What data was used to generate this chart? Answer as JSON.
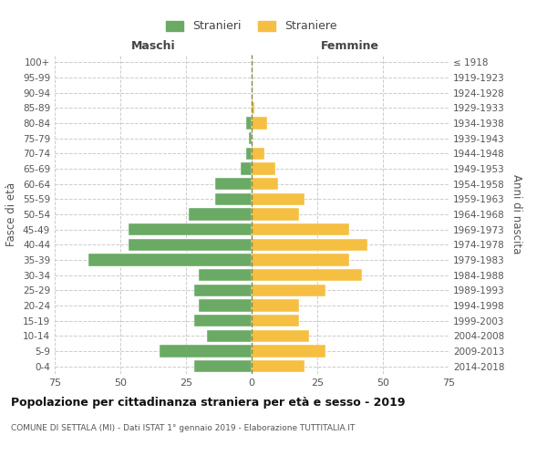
{
  "age_groups": [
    "0-4",
    "5-9",
    "10-14",
    "15-19",
    "20-24",
    "25-29",
    "30-34",
    "35-39",
    "40-44",
    "45-49",
    "50-54",
    "55-59",
    "60-64",
    "65-69",
    "70-74",
    "75-79",
    "80-84",
    "85-89",
    "90-94",
    "95-99",
    "100+"
  ],
  "birth_years": [
    "2014-2018",
    "2009-2013",
    "2004-2008",
    "1999-2003",
    "1994-1998",
    "1989-1993",
    "1984-1988",
    "1979-1983",
    "1974-1978",
    "1969-1973",
    "1964-1968",
    "1959-1963",
    "1954-1958",
    "1949-1953",
    "1944-1948",
    "1939-1943",
    "1934-1938",
    "1929-1933",
    "1924-1928",
    "1919-1923",
    "≤ 1918"
  ],
  "males": [
    22,
    35,
    17,
    22,
    20,
    22,
    20,
    62,
    47,
    47,
    24,
    14,
    14,
    4,
    2,
    1,
    2,
    0,
    0,
    0,
    0
  ],
  "females": [
    20,
    28,
    22,
    18,
    18,
    28,
    42,
    37,
    44,
    37,
    18,
    20,
    10,
    9,
    5,
    0,
    6,
    1,
    0,
    0,
    0
  ],
  "male_color": "#6aaa64",
  "female_color": "#f5bf42",
  "grid_color": "#cccccc",
  "axis_label_color": "#555555",
  "background_color": "#ffffff",
  "title": "Popolazione per cittadinanza straniera per età e sesso - 2019",
  "subtitle": "COMUNE DI SETTALA (MI) - Dati ISTAT 1° gennaio 2019 - Elaborazione TUTTITALIA.IT",
  "xlabel_left": "Maschi",
  "xlabel_right": "Femmine",
  "ylabel_left": "Fasce di età",
  "ylabel_right": "Anni di nascita",
  "xlim": 75,
  "legend_male": "Stranieri",
  "legend_female": "Straniere"
}
